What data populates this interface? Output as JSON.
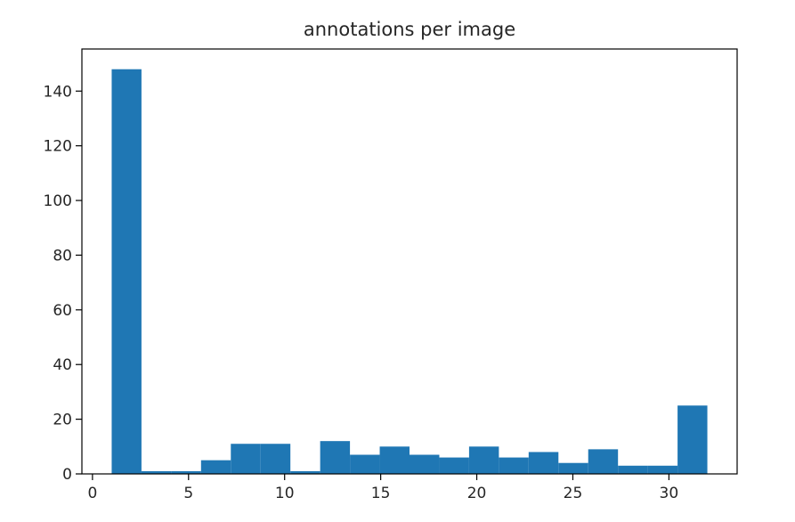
{
  "chart_data": {
    "type": "bar",
    "title": "annotations per image",
    "xlabel": "",
    "ylabel": "",
    "xlim": [
      -0.55,
      33.55
    ],
    "ylim": [
      0,
      155.4
    ],
    "xticks": [
      0,
      5,
      10,
      15,
      20,
      25,
      30
    ],
    "yticks": [
      0,
      20,
      40,
      60,
      80,
      100,
      120,
      140
    ],
    "grid": false,
    "color": "#1f77b4",
    "bins": [
      {
        "x0": 1.0,
        "x1": 2.55,
        "value": 148
      },
      {
        "x0": 2.55,
        "x1": 4.1,
        "value": 1
      },
      {
        "x0": 4.1,
        "x1": 5.65,
        "value": 1
      },
      {
        "x0": 5.65,
        "x1": 7.2,
        "value": 5
      },
      {
        "x0": 7.2,
        "x1": 8.75,
        "value": 11
      },
      {
        "x0": 8.75,
        "x1": 10.3,
        "value": 11
      },
      {
        "x0": 10.3,
        "x1": 11.85,
        "value": 1
      },
      {
        "x0": 11.85,
        "x1": 13.4,
        "value": 12
      },
      {
        "x0": 13.4,
        "x1": 14.95,
        "value": 7
      },
      {
        "x0": 14.95,
        "x1": 16.5,
        "value": 10
      },
      {
        "x0": 16.5,
        "x1": 18.05,
        "value": 7
      },
      {
        "x0": 18.05,
        "x1": 19.6,
        "value": 6
      },
      {
        "x0": 19.6,
        "x1": 21.15,
        "value": 10
      },
      {
        "x0": 21.15,
        "x1": 22.7,
        "value": 6
      },
      {
        "x0": 22.7,
        "x1": 24.25,
        "value": 8
      },
      {
        "x0": 24.25,
        "x1": 25.8,
        "value": 4
      },
      {
        "x0": 25.8,
        "x1": 27.35,
        "value": 9
      },
      {
        "x0": 27.35,
        "x1": 28.9,
        "value": 3
      },
      {
        "x0": 28.9,
        "x1": 30.45,
        "value": 3
      },
      {
        "x0": 30.45,
        "x1": 32.0,
        "value": 25
      }
    ]
  }
}
